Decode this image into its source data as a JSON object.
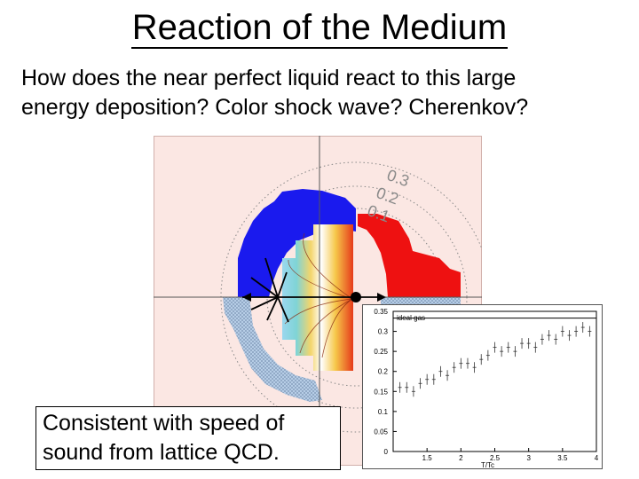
{
  "slide": {
    "title": "Reaction of the Medium",
    "body_line1": "How does the near perfect liquid react to this  large",
    "body_line2": "energy deposition?  Color shock wave?  Cherenkov?",
    "callout_line1": "Consistent with speed of",
    "callout_line2": "sound from lattice QCD."
  },
  "polar_plot": {
    "ring_labels": [
      "0.3",
      "0.2",
      "0.1"
    ],
    "colors": {
      "blue": "#1a1aee",
      "red": "#ee1111",
      "hatched": "#b6cde6"
    }
  },
  "chart_data": {
    "type": "scatter",
    "title": "",
    "legend": "ideal gas",
    "xlabel": "T/Tc",
    "ylabel": "",
    "xlim": [
      1,
      4
    ],
    "ylim": [
      0,
      0.35
    ],
    "x_ticks": [
      "1.5",
      "2",
      "2.5",
      "3",
      "3.5",
      "4"
    ],
    "y_ticks": [
      "0",
      "0.05",
      "0.1",
      "0.15",
      "0.2",
      "0.25",
      "0.3",
      "0.35"
    ],
    "ideal_gas_value": 0.333,
    "series": [
      {
        "x": [
          1.1,
          1.2,
          1.3,
          1.4,
          1.5,
          1.6,
          1.7,
          1.8,
          1.9,
          2.0,
          2.1,
          2.2,
          2.3,
          2.4,
          2.5,
          2.6,
          2.7,
          2.8,
          2.9,
          3.0,
          3.1,
          3.2,
          3.3,
          3.4,
          3.5,
          3.6,
          3.7,
          3.8,
          3.9
        ],
        "values": [
          0.16,
          0.16,
          0.15,
          0.17,
          0.18,
          0.18,
          0.2,
          0.19,
          0.21,
          0.22,
          0.22,
          0.21,
          0.23,
          0.24,
          0.26,
          0.25,
          0.26,
          0.25,
          0.27,
          0.27,
          0.26,
          0.28,
          0.29,
          0.28,
          0.3,
          0.29,
          0.3,
          0.31,
          0.3
        ]
      }
    ]
  }
}
